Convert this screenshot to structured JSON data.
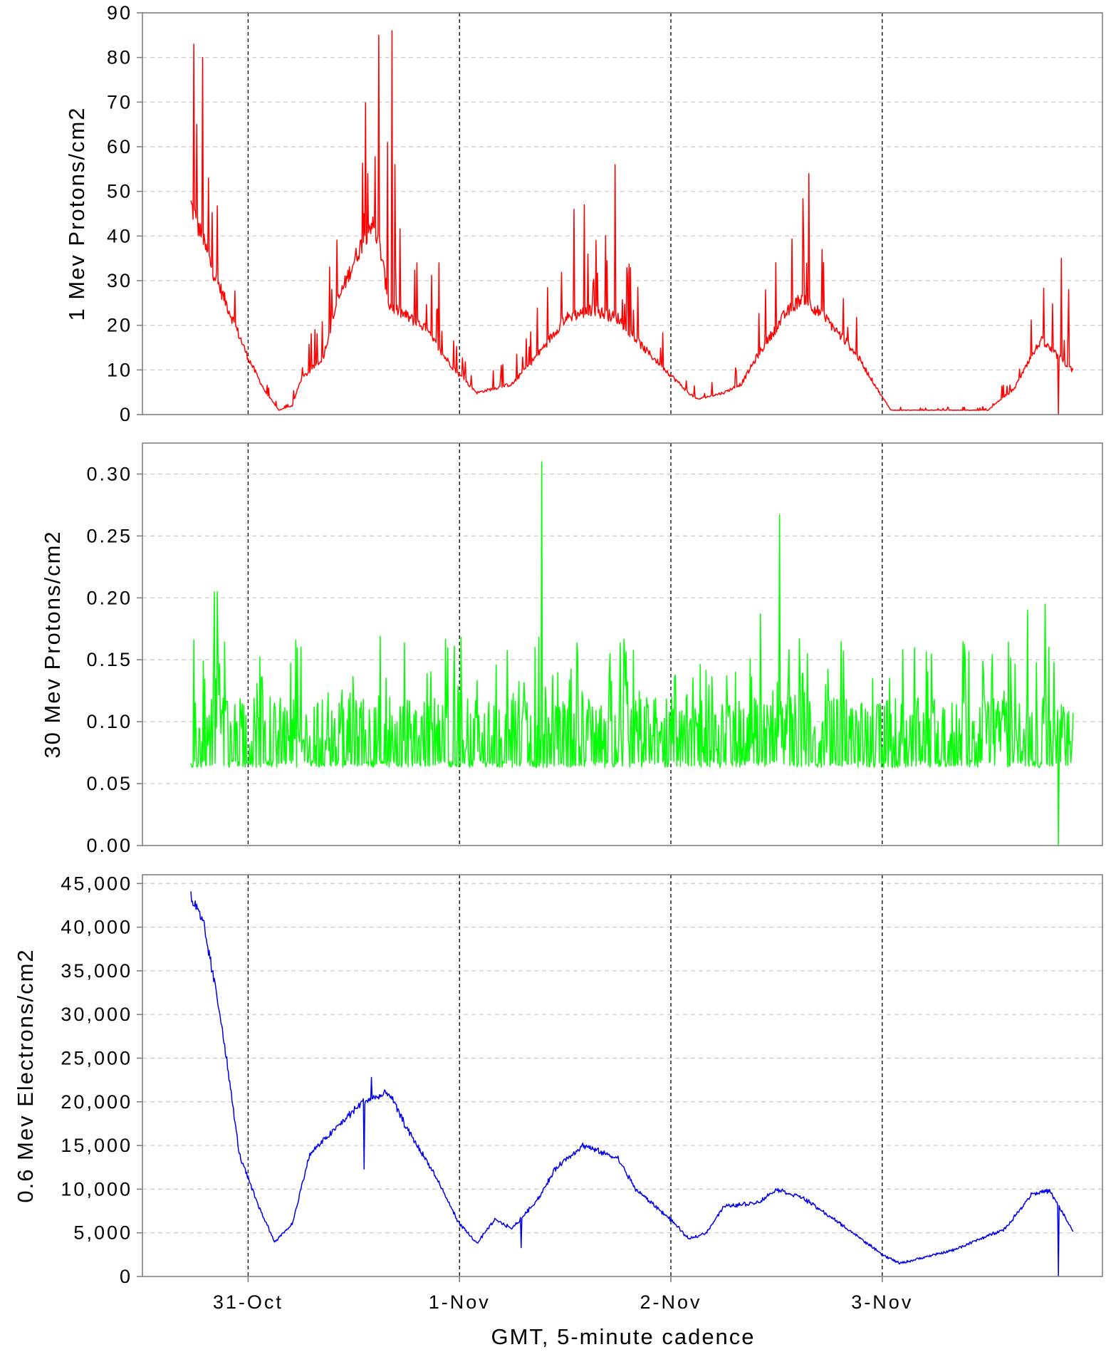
{
  "chart_data": {
    "type": "line",
    "xlabel": "GMT, 5-minute cadence",
    "x_start": "2020-10-30 17:30",
    "x_end": "2020-11-03 21:40",
    "x_range": [
      "2020-10-30 12:00",
      "2020-11-04 01:00"
    ],
    "xticks": [
      "31-Oct",
      "1-Nov",
      "2-Nov",
      "3-Nov"
    ],
    "day_separators": "dashed black vertical lines",
    "grid": "horizontal dashed gray",
    "panels": [
      {
        "name": "protons_1mev",
        "ylabel": "1 Mev Protons/cm2",
        "color": "#ff0000",
        "ylim": [
          0,
          90
        ],
        "yticks": [
          "0",
          "10",
          "20",
          "30",
          "40",
          "50",
          "60",
          "70",
          "80",
          "90"
        ],
        "ytick_values": [
          0,
          10,
          20,
          30,
          40,
          50,
          60,
          70,
          80,
          90
        ],
        "baseline_knots": [
          [
            "2020-10-30 17:30",
            48
          ],
          [
            "2020-10-30 20:00",
            33
          ],
          [
            "2020-10-30 22:00",
            23
          ],
          [
            "2020-10-31 00:00",
            13
          ],
          [
            "2020-10-31 02:00",
            5
          ],
          [
            "2020-10-31 03:30",
            1
          ],
          [
            "2020-10-31 05:00",
            2
          ],
          [
            "2020-10-31 06:00",
            8
          ],
          [
            "2020-10-31 08:30",
            13
          ],
          [
            "2020-10-31 10:00",
            25
          ],
          [
            "2020-10-31 12:00",
            35
          ],
          [
            "2020-10-31 14:00",
            44
          ],
          [
            "2020-10-31 15:00",
            38
          ],
          [
            "2020-10-31 16:00",
            25
          ],
          [
            "2020-10-31 20:00",
            20
          ],
          [
            "2020-10-31 22:00",
            14
          ],
          [
            "2020-11-01 00:00",
            9
          ],
          [
            "2020-11-01 02:00",
            5
          ],
          [
            "2020-11-01 04:00",
            6
          ],
          [
            "2020-11-01 06:00",
            7
          ],
          [
            "2020-11-01 09:00",
            14
          ],
          [
            "2020-11-01 12:00",
            22
          ],
          [
            "2020-11-01 15:00",
            24
          ],
          [
            "2020-11-01 18:00",
            22
          ],
          [
            "2020-11-01 21:00",
            15
          ],
          [
            "2020-11-02 00:00",
            9
          ],
          [
            "2020-11-02 02:00",
            5
          ],
          [
            "2020-11-02 03:00",
            3.5
          ],
          [
            "2020-11-02 06:00",
            5
          ],
          [
            "2020-11-02 08:00",
            7
          ],
          [
            "2020-11-02 10:00",
            14
          ],
          [
            "2020-11-02 13:00",
            23
          ],
          [
            "2020-11-02 15:00",
            27
          ],
          [
            "2020-11-02 18:00",
            21
          ],
          [
            "2020-11-02 21:00",
            14
          ],
          [
            "2020-11-03 00:00",
            4
          ],
          [
            "2020-11-03 01:00",
            1
          ],
          [
            "2020-11-03 12:00",
            1
          ],
          [
            "2020-11-03 15:00",
            6
          ],
          [
            "2020-11-03 18:00",
            17
          ],
          [
            "2020-11-03 21:40",
            10
          ]
        ],
        "spikes": [
          [
            "2020-10-30 17:50",
            83
          ],
          [
            "2020-10-30 18:50",
            80
          ],
          [
            "2020-10-30 18:10",
            65
          ],
          [
            "2020-10-30 19:30",
            53
          ],
          [
            "2020-10-31 14:50",
            85
          ],
          [
            "2020-10-31 15:50",
            61
          ],
          [
            "2020-10-31 16:20",
            86
          ],
          [
            "2020-10-31 16:40",
            56
          ],
          [
            "2020-10-31 13:10",
            45
          ],
          [
            "2020-10-31 21:40",
            34
          ],
          [
            "2020-11-01 13:00",
            46
          ],
          [
            "2020-11-01 14:10",
            47
          ],
          [
            "2020-11-01 17:40",
            56
          ],
          [
            "2020-11-01 15:30",
            39
          ],
          [
            "2020-11-02 15:40",
            54
          ],
          [
            "2020-11-02 17:10",
            37
          ],
          [
            "2020-11-03 20:20",
            35
          ],
          [
            "2020-11-03 21:10",
            28
          ]
        ],
        "dropout": [
          "2020-11-03 20:00",
          0
        ]
      },
      {
        "name": "protons_30mev",
        "ylabel": "30 Mev Protons/cm2",
        "color": "#00ff00",
        "ylim": [
          0,
          0.325
        ],
        "yticks": [
          "0.00",
          "0.05",
          "0.10",
          "0.15",
          "0.20",
          "0.25",
          "0.30"
        ],
        "ytick_values": [
          0,
          0.05,
          0.1,
          0.15,
          0.2,
          0.25,
          0.3
        ],
        "floor": 0.063,
        "typical_peak_range": [
          0.1,
          0.17
        ],
        "spikes": [
          [
            "2020-10-30 20:10",
            0.205
          ],
          [
            "2020-10-30 20:30",
            0.205
          ],
          [
            "2020-11-01 09:20",
            0.31
          ],
          [
            "2020-11-02 12:20",
            0.267
          ],
          [
            "2020-11-02 10:10",
            0.187
          ],
          [
            "2020-11-03 18:30",
            0.195
          ],
          [
            "2020-11-03 16:30",
            0.19
          ],
          [
            "2020-10-30 17:50",
            0.166
          ]
        ],
        "dropout": [
          "2020-11-03 20:00",
          0
        ]
      },
      {
        "name": "electrons_06mev",
        "ylabel": "0.6 Mev Electrons/cm2",
        "color": "#0000ee",
        "ylim": [
          0,
          46000
        ],
        "yticks": [
          "0",
          "5,000",
          "10,000",
          "15,000",
          "20,000",
          "25,000",
          "30,000",
          "35,000",
          "40,000",
          "45,000"
        ],
        "ytick_values": [
          0,
          5000,
          10000,
          15000,
          20000,
          25000,
          30000,
          35000,
          40000,
          45000
        ],
        "baseline_knots": [
          [
            "2020-10-30 17:30",
            43500
          ],
          [
            "2020-10-30 19:00",
            40000
          ],
          [
            "2020-10-30 21:00",
            29000
          ],
          [
            "2020-10-30 23:00",
            14000
          ],
          [
            "2020-10-31 01:00",
            8500
          ],
          [
            "2020-10-31 03:00",
            4000
          ],
          [
            "2020-10-31 05:00",
            6000
          ],
          [
            "2020-10-31 07:00",
            14000
          ],
          [
            "2020-10-31 10:00",
            17000
          ],
          [
            "2020-10-31 13:00",
            20000
          ],
          [
            "2020-10-31 16:00",
            21000
          ],
          [
            "2020-10-31 18:00",
            17000
          ],
          [
            "2020-10-31 21:00",
            12000
          ],
          [
            "2020-11-01 00:00",
            6000
          ],
          [
            "2020-11-01 02:00",
            3800
          ],
          [
            "2020-11-01 04:00",
            6500
          ],
          [
            "2020-11-01 06:00",
            5500
          ],
          [
            "2020-11-01 09:00",
            9000
          ],
          [
            "2020-11-01 11:00",
            12500
          ],
          [
            "2020-11-01 14:00",
            15000
          ],
          [
            "2020-11-01 18:00",
            13500
          ],
          [
            "2020-11-01 20:00",
            10000
          ],
          [
            "2020-11-02 00:00",
            6500
          ],
          [
            "2020-11-02 02:00",
            4300
          ],
          [
            "2020-11-02 04:00",
            5000
          ],
          [
            "2020-11-02 06:00",
            8000
          ],
          [
            "2020-11-02 10:00",
            8500
          ],
          [
            "2020-11-02 12:00",
            10000
          ],
          [
            "2020-11-02 15:00",
            9000
          ],
          [
            "2020-11-02 20:00",
            5500
          ],
          [
            "2020-11-03 00:00",
            2500
          ],
          [
            "2020-11-03 02:00",
            1500
          ],
          [
            "2020-11-03 08:00",
            3000
          ],
          [
            "2020-11-03 14:00",
            5500
          ],
          [
            "2020-11-03 17:00",
            9500
          ],
          [
            "2020-11-03 19:00",
            9800
          ],
          [
            "2020-11-03 21:40",
            5200
          ]
        ],
        "spikes": [
          [
            "2020-10-31 13:10",
            12300
          ],
          [
            "2020-10-31 14:00",
            22800
          ],
          [
            "2020-11-01 07:00",
            3300
          ]
        ],
        "dropout": [
          "2020-11-03 20:00",
          0
        ]
      }
    ]
  }
}
